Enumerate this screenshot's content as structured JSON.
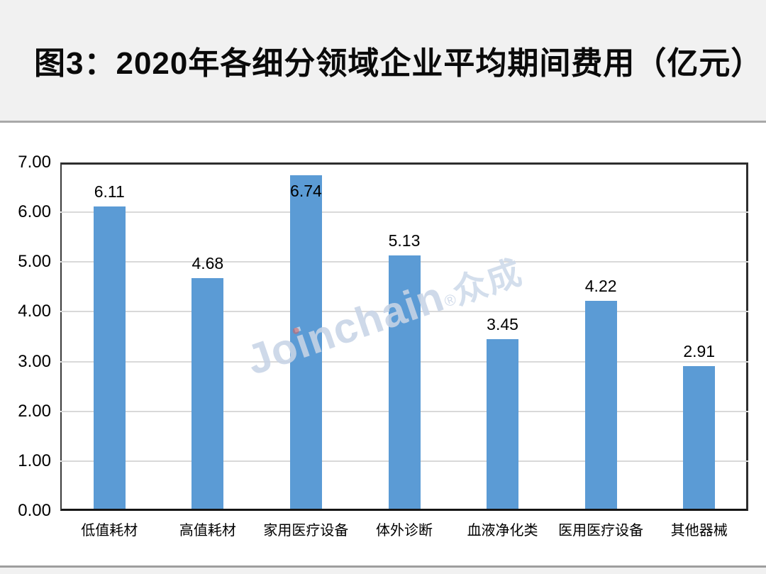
{
  "header": {
    "title": "图3：2020年各细分领域企业平均期间费用（亿元）"
  },
  "watermark": {
    "brand": "Joinchain",
    "registered": "®",
    "suffix": "众成"
  },
  "chart_data": {
    "type": "bar",
    "title": "图3：2020年各细分领域企业平均期间费用（亿元）",
    "unit": "亿元",
    "categories": [
      "低值耗材",
      "高值耗材",
      "家用医疗设备",
      "体外诊断",
      "血液净化类",
      "医用医疗设备",
      "其他器械"
    ],
    "values": [
      6.11,
      4.68,
      6.74,
      5.13,
      3.45,
      4.22,
      2.91
    ],
    "value_labels": [
      "6.11",
      "4.68",
      "6.74",
      "5.13",
      "3.45",
      "4.22",
      "2.91"
    ],
    "ylim": [
      0,
      7
    ],
    "ytick_interval": 1,
    "ytick_labels_top_to_bottom": [
      "7.00",
      "6.00",
      "5.00",
      "4.00",
      "3.00",
      "2.00",
      "1.00",
      "0.00"
    ],
    "grid": "horizontal",
    "legend": "none",
    "xlabel": "",
    "ylabel": ""
  },
  "colors": {
    "bar": "#5B9BD5",
    "gridline": "#D9D9D9",
    "plot_border": "#2E2E2E",
    "axis_line": "#161616",
    "title_text": "#0A0A0A",
    "header_bg": "#F1F1F1",
    "separator": "#A9A9A9",
    "background": "#FFFFFF",
    "label_text": "#000000",
    "watermark": "#C8D4E6",
    "watermark_dot": "#E2574C"
  }
}
